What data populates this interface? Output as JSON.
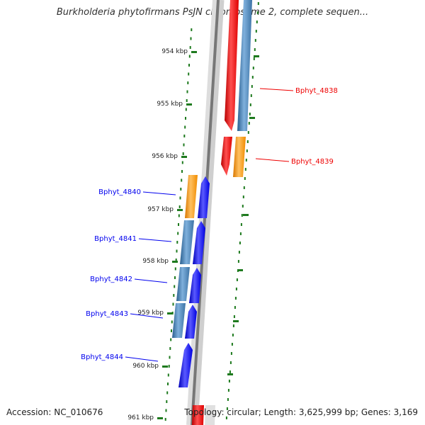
{
  "title": "Burkholderia phytofirmans PsJN chromosome 2, complete sequen...",
  "accession": "Accession: NC_010676",
  "stats": "Topology: circular; Length: 3,625,999 bp; Genes: 3,169",
  "colors": {
    "forward_gene": "#0000ee",
    "reverse_gene": "#ee0000",
    "cds_blue": "#4a86bb",
    "cds_orange": "#ff9900",
    "backbone": "#777777",
    "tick": "#1e7a1e"
  },
  "ticks": [
    {
      "label": "954 kbp"
    },
    {
      "label": "955 kbp"
    },
    {
      "label": "956 kbp"
    },
    {
      "label": "957 kbp"
    },
    {
      "label": "958 kbp"
    },
    {
      "label": "959 kbp"
    },
    {
      "label": "960 kbp"
    },
    {
      "label": "961 kbp"
    }
  ],
  "genes": [
    {
      "name": "Bphyt_4838",
      "strand": "reverse"
    },
    {
      "name": "Bphyt_4839",
      "strand": "reverse"
    },
    {
      "name": "Bphyt_4840",
      "strand": "forward"
    },
    {
      "name": "Bphyt_4841",
      "strand": "forward"
    },
    {
      "name": "Bphyt_4842",
      "strand": "forward"
    },
    {
      "name": "Bphyt_4843",
      "strand": "forward"
    },
    {
      "name": "Bphyt_4844",
      "strand": "forward"
    }
  ]
}
